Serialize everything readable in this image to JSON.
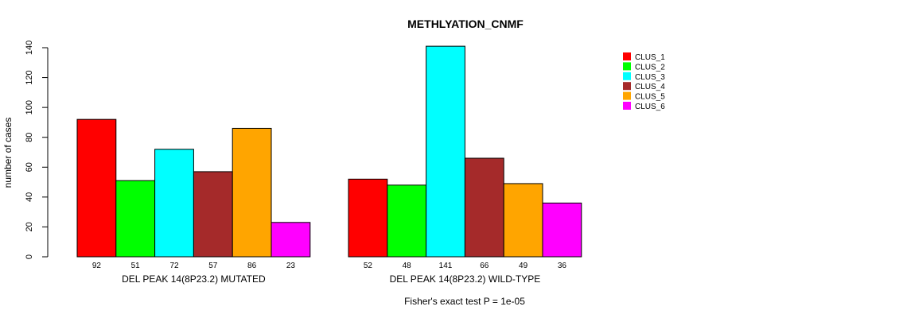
{
  "chart_data": {
    "type": "bar",
    "title": "METHLYATION_CNMF",
    "ylabel": "number of cases",
    "ylim": [
      0,
      140
    ],
    "yticks": [
      0,
      20,
      40,
      60,
      80,
      100,
      120,
      140
    ],
    "groups": [
      {
        "label": "DEL PEAK 14(8P23.2) MUTATED",
        "values": [
          92,
          51,
          72,
          57,
          86,
          23
        ],
        "value_labels": [
          "92",
          "51",
          "72",
          "57",
          "86",
          "23"
        ]
      },
      {
        "label": "DEL PEAK 14(8P23.2) WILD-TYPE",
        "values": [
          52,
          48,
          141,
          66,
          49,
          36
        ],
        "value_labels": [
          "52",
          "48",
          "141",
          "66",
          "49",
          "36"
        ]
      }
    ],
    "series": [
      {
        "name": "CLUS_1",
        "color": "#ff0000"
      },
      {
        "name": "CLUS_2",
        "color": "#00ff00"
      },
      {
        "name": "CLUS_3",
        "color": "#00ffff"
      },
      {
        "name": "CLUS_4",
        "color": "#a52a2a"
      },
      {
        "name": "CLUS_5",
        "color": "#ffa500"
      },
      {
        "name": "CLUS_6",
        "color": "#ff00ff"
      }
    ],
    "legend_position": "top-right",
    "grid": false,
    "footnote": "Fisher's exact test P = 1e-05"
  }
}
